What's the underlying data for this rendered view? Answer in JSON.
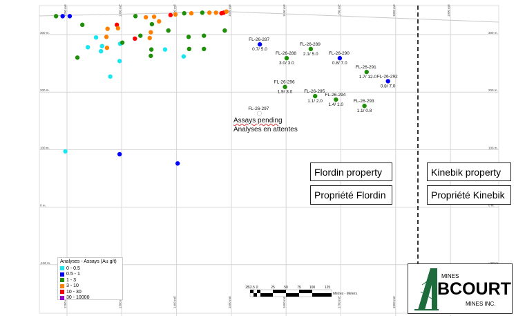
{
  "colors": {
    "0-0.5": "#19e6ef",
    "0.5-1": "#0000ff",
    "1-3": "#1f8f0a",
    "3-10": "#ff8000",
    "10-30": "#ff0000",
    "30-10000": "#9b00d0",
    "pending": "#ffffff",
    "property_line": "#000000"
  },
  "axes": {
    "easting_labels": [
      "1200 mE",
      "1300 mE",
      "1400 mE",
      "1500 mE",
      "1600 mE",
      "1700 mE",
      "1800 mE",
      "1900 mE"
    ],
    "easting_values": [
      1200,
      1300,
      1400,
      1500,
      1600,
      1700,
      1800,
      1900
    ],
    "elevation_labels": [
      "300 m.",
      "200 m.",
      "100 m.",
      "0 m.",
      "-100 m."
    ],
    "elevation_values": [
      300,
      200,
      100,
      0,
      -100
    ]
  },
  "legend": {
    "title": "Analyses - Assays (Au g/t)",
    "items": [
      {
        "label": "0 - 0.5",
        "key": "0-0.5"
      },
      {
        "label": "0.5 - 1",
        "key": "0.5-1"
      },
      {
        "label": "1 - 3",
        "key": "1-3"
      },
      {
        "label": "3 - 10",
        "key": "3-10"
      },
      {
        "label": "10 - 30",
        "key": "10-30"
      },
      {
        "label": "30 - 10000",
        "key": "30-10000"
      }
    ]
  },
  "holes": [
    {
      "id": "FL-26-287",
      "assay": "0.7/ 5.0",
      "e": 1552,
      "z": 283,
      "grade": "0.5-1"
    },
    {
      "id": "FL-26-288",
      "assay": "3.0/ 3.0",
      "e": 1601,
      "z": 259,
      "grade": "1-3"
    },
    {
      "id": "FL-26-289",
      "assay": "2.1/ 5.0",
      "e": 1645,
      "z": 275,
      "grade": "1-3"
    },
    {
      "id": "FL-26-290",
      "assay": "0.8/ 7.0",
      "e": 1698,
      "z": 259,
      "grade": "0.5-1"
    },
    {
      "id": "FL-26-291",
      "assay": "1.7/ 12.0",
      "e": 1747,
      "z": 235,
      "grade": "1-3"
    },
    {
      "id": "FL-26-292",
      "assay": "0.8/ 7.0",
      "e": 1786,
      "z": 219,
      "grade": "0.5-1"
    },
    {
      "id": "FL-26-293",
      "assay": "1.1/ 0.8",
      "e": 1743,
      "z": 176,
      "grade": "1-3"
    },
    {
      "id": "FL-26-294",
      "assay": "1.4/ 1.0",
      "e": 1691,
      "z": 187,
      "grade": "1-3"
    },
    {
      "id": "FL-26-295",
      "assay": "1.1/ 2.0",
      "e": 1653,
      "z": 193,
      "grade": "1-3"
    },
    {
      "id": "FL-26-296",
      "assay": "1.9/ 3.0",
      "e": 1598,
      "z": 209,
      "grade": "1-3"
    },
    {
      "id": "FL-26-297",
      "assay": "",
      "e": 1551,
      "z": 163,
      "grade": "pending"
    }
  ],
  "historic_intercepts": [
    {
      "e": 1180,
      "z": 332,
      "grade": "1-3"
    },
    {
      "e": 1192,
      "z": 332,
      "grade": "0.5-1"
    },
    {
      "e": 1205,
      "z": 332,
      "grade": "0.5-1"
    },
    {
      "e": 1325,
      "z": 332,
      "grade": "1-3"
    },
    {
      "e": 1344,
      "z": 330,
      "grade": "3-10"
    },
    {
      "e": 1359,
      "z": 331,
      "grade": "3-10"
    },
    {
      "e": 1389,
      "z": 334,
      "grade": "10-30"
    },
    {
      "e": 1398,
      "z": 335,
      "grade": "3-10"
    },
    {
      "e": 1414,
      "z": 337,
      "grade": "1-3"
    },
    {
      "e": 1427,
      "z": 337,
      "grade": "3-10"
    },
    {
      "e": 1447,
      "z": 338,
      "grade": "1-3"
    },
    {
      "e": 1460,
      "z": 338,
      "grade": "3-10"
    },
    {
      "e": 1472,
      "z": 338,
      "grade": "3-10"
    },
    {
      "e": 1482,
      "z": 337,
      "grade": "10-30"
    },
    {
      "e": 1486,
      "z": 338,
      "grade": "10-30"
    },
    {
      "e": 1491,
      "z": 340,
      "grade": "3-10"
    },
    {
      "e": 1228,
      "z": 317,
      "grade": "1-3"
    },
    {
      "e": 1291,
      "z": 317,
      "grade": "10-30"
    },
    {
      "e": 1274,
      "z": 310,
      "grade": "3-10"
    },
    {
      "e": 1293,
      "z": 311,
      "grade": "3-10"
    },
    {
      "e": 1368,
      "z": 323,
      "grade": "3-10"
    },
    {
      "e": 1355,
      "z": 318,
      "grade": "1-3"
    },
    {
      "e": 1385,
      "z": 307,
      "grade": "1-3"
    },
    {
      "e": 1422,
      "z": 296,
      "grade": "1-3"
    },
    {
      "e": 1450,
      "z": 298,
      "grade": "1-3"
    },
    {
      "e": 1488,
      "z": 307,
      "grade": "1-3"
    },
    {
      "e": 1253,
      "z": 295,
      "grade": "0-0.5"
    },
    {
      "e": 1272,
      "z": 296,
      "grade": "3-10"
    },
    {
      "e": 1324,
      "z": 293,
      "grade": "10-30"
    },
    {
      "e": 1334,
      "z": 298,
      "grade": "1-3"
    },
    {
      "e": 1353,
      "z": 304,
      "grade": "3-10"
    },
    {
      "e": 1351,
      "z": 294,
      "grade": "3-10"
    },
    {
      "e": 1238,
      "z": 278,
      "grade": "0-0.5"
    },
    {
      "e": 1264,
      "z": 280,
      "grade": "0-0.5"
    },
    {
      "e": 1262,
      "z": 271,
      "grade": "0-0.5"
    },
    {
      "e": 1273,
      "z": 277,
      "grade": "3-10"
    },
    {
      "e": 1297,
      "z": 284,
      "grade": "0-0.5"
    },
    {
      "e": 1301,
      "z": 286,
      "grade": "1-3"
    },
    {
      "e": 1296,
      "z": 254,
      "grade": "0-0.5"
    },
    {
      "e": 1279,
      "z": 227,
      "grade": "0-0.5"
    },
    {
      "e": 1219,
      "z": 260,
      "grade": "1-3"
    },
    {
      "e": 1354,
      "z": 274,
      "grade": "1-3"
    },
    {
      "e": 1353,
      "z": 263,
      "grade": "1-3"
    },
    {
      "e": 1379,
      "z": 274,
      "grade": "0-0.5"
    },
    {
      "e": 1413,
      "z": 262,
      "grade": "0-0.5"
    },
    {
      "e": 1423,
      "z": 275,
      "grade": "1-3"
    },
    {
      "e": 1450,
      "z": 275,
      "grade": "1-3"
    },
    {
      "e": 1197,
      "z": 97,
      "grade": "0-0.5"
    },
    {
      "e": 1296,
      "z": 92,
      "grade": "0.5-1"
    },
    {
      "e": 1402,
      "z": 76,
      "grade": "0.5-1"
    }
  ],
  "pending_note": {
    "en": "Assays pending",
    "fr": "Analyses en attentes"
  },
  "properties": {
    "flordin_en": "Flordin property",
    "flordin_fr": "Propriété Flordin",
    "kinebik_en": "Kinebik property",
    "kinebik_fr": "Propriété Kinebik"
  },
  "scale_bar": {
    "labels": [
      "25",
      "12.5",
      "0",
      "25",
      "50",
      "75",
      "100",
      "125"
    ],
    "unit": "Mètres - Meters"
  },
  "logo": {
    "top": "MINES",
    "name": "BCOURT",
    "bottom": "MINES INC.",
    "brand_color": "#1e6b3c"
  }
}
